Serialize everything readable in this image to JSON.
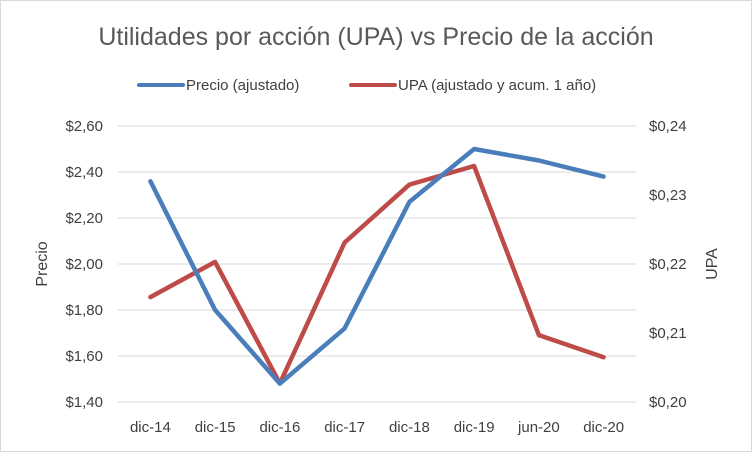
{
  "chart_data": {
    "type": "line",
    "title": "Utilidades por acción (UPA) vs Precio de la acción",
    "categories": [
      "dic-14",
      "dic-15",
      "dic-16",
      "dic-17",
      "dic-18",
      "dic-19",
      "jun-20",
      "dic-20"
    ],
    "y_left": {
      "label": "Precio",
      "range": [
        1.4,
        2.6
      ],
      "ticks": [
        "$1,40",
        "$1,60",
        "$1,80",
        "$2,00",
        "$2,20",
        "$2,40",
        "$2,60"
      ]
    },
    "y_right": {
      "label": "UPA",
      "range": [
        0.2,
        0.24
      ],
      "ticks": [
        "$0,20",
        "$0,21",
        "$0,22",
        "$0,23",
        "$0,24"
      ]
    },
    "series": [
      {
        "name": "Precio (ajustado)",
        "axis": "left",
        "color": "#4a7ebb",
        "values": [
          2.36,
          1.8,
          1.48,
          1.72,
          2.27,
          2.5,
          2.45,
          2.38
        ]
      },
      {
        "name": "UPA (ajustado y acum. 1 año)",
        "axis": "right",
        "color": "#be4b48",
        "values": [
          0.2152,
          0.2203,
          0.2027,
          0.2231,
          0.2315,
          0.2342,
          0.2097,
          0.2065
        ]
      }
    ],
    "legend_position": "top",
    "grid": true
  }
}
